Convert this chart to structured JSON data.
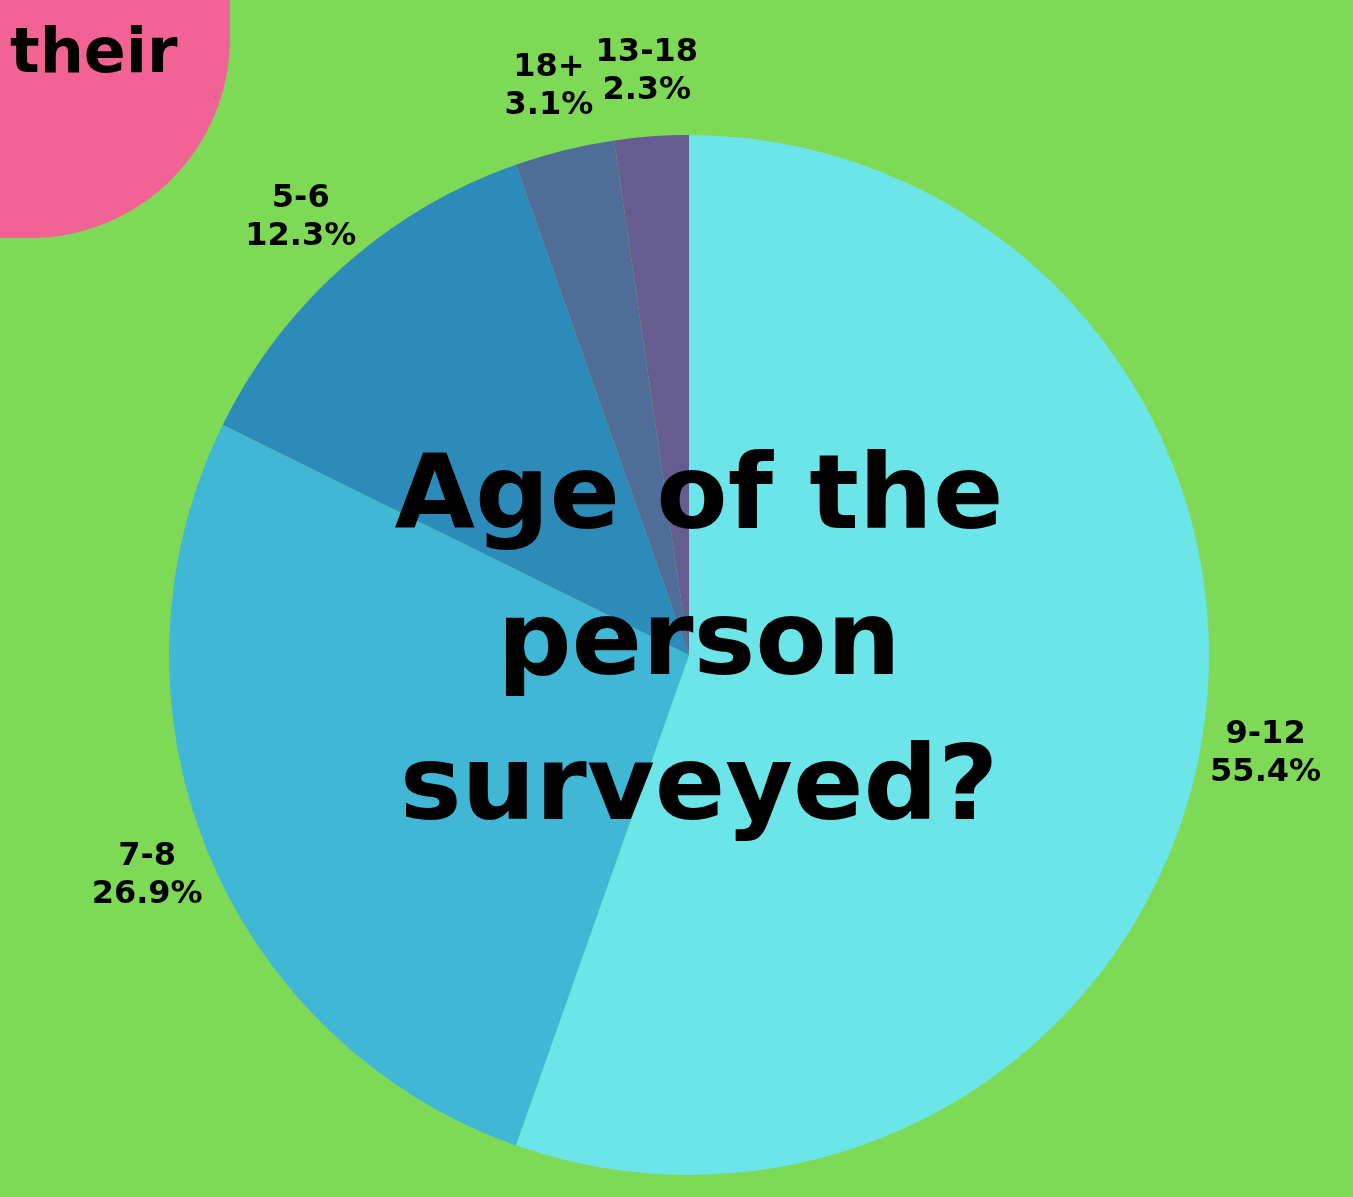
{
  "chart_data": {
    "type": "pie",
    "title": "Age of the person surveyed?",
    "categories": [
      "9-12",
      "7-8",
      "5-6",
      "18+",
      "13-18"
    ],
    "values": [
      55.4,
      26.9,
      12.3,
      3.1,
      2.3
    ],
    "value_labels": [
      "55.4%",
      "26.9%",
      "12.3%",
      "3.1%",
      "2.3%"
    ],
    "colors": [
      "#6ce5e8",
      "#41b7d6",
      "#2d8bba",
      "#506d9a",
      "#655c90"
    ],
    "legend": false,
    "annotations": [
      "their"
    ]
  }
}
